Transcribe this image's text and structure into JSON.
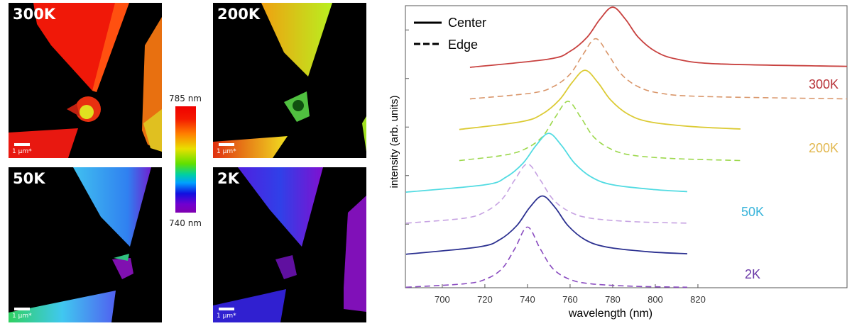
{
  "panels": [
    {
      "label": "300K",
      "scale": "1 µm*"
    },
    {
      "label": "200K",
      "scale": "1 µm*"
    },
    {
      "label": "50K",
      "scale": "1 µm*"
    },
    {
      "label": "2K",
      "scale": "1 µm*"
    }
  ],
  "colorbar": {
    "max_label": "785 nm",
    "min_label": "740 nm",
    "range_nm": [
      740,
      785
    ],
    "colormap": "rainbow (violet to red)"
  },
  "chart_data": {
    "type": "line",
    "title": "",
    "xlabel": "wavelength (nm)",
    "ylabel": "intensity (arb. units)",
    "xlim": [
      682.7,
      890
    ],
    "ylim": [
      -0.31,
      5.5
    ],
    "xticks": [
      700,
      720,
      740,
      760,
      780,
      800,
      820
    ],
    "yticks": [
      1,
      2,
      3,
      4,
      5
    ],
    "ytick_labels_shown": false,
    "grid": false,
    "legend": {
      "placement": "top-left",
      "entries": [
        {
          "label": "Center",
          "style": "solid"
        },
        {
          "label": "Edge",
          "style": "dashed"
        }
      ]
    },
    "annotations": [
      {
        "text": "300K",
        "color": "#b83238"
      },
      {
        "text": "200K",
        "color": "#e2b850"
      },
      {
        "text": "50K",
        "color": "#38b4da"
      },
      {
        "text": "2K",
        "color": "#6a38a8"
      }
    ],
    "series": [
      {
        "temp": "300K",
        "style": "solid",
        "color": "#c8413f",
        "x": [
          713,
          750,
          760,
          768,
          774,
          780,
          786,
          792,
          800,
          810,
          830,
          890
        ],
        "y": [
          4.23,
          4.4,
          4.56,
          4.85,
          5.22,
          5.47,
          5.22,
          4.85,
          4.56,
          4.4,
          4.3,
          4.25
        ]
      },
      {
        "temp": "300K",
        "style": "dashed",
        "color": "#d9966a",
        "x": [
          713,
          742,
          752,
          760,
          766,
          772,
          778,
          784,
          792,
          802,
          822,
          890
        ],
        "y": [
          3.58,
          3.7,
          3.83,
          4.09,
          4.49,
          4.82,
          4.49,
          4.09,
          3.83,
          3.7,
          3.63,
          3.58
        ]
      },
      {
        "temp": "200K",
        "style": "solid",
        "color": "#dccb36",
        "x": [
          708,
          737,
          747,
          755,
          761,
          767,
          773,
          779,
          787,
          797,
          817,
          840
        ],
        "y": [
          2.95,
          3.11,
          3.27,
          3.56,
          3.92,
          4.17,
          3.92,
          3.56,
          3.27,
          3.11,
          3.01,
          2.96
        ]
      },
      {
        "temp": "200K",
        "style": "dashed",
        "color": "#9cd84c",
        "x": [
          708,
          729,
          739,
          747,
          753,
          759,
          765,
          771,
          779,
          789,
          809,
          840
        ],
        "y": [
          2.31,
          2.42,
          2.55,
          2.8,
          3.2,
          3.53,
          3.2,
          2.8,
          2.55,
          2.42,
          2.35,
          2.31
        ]
      },
      {
        "temp": "50K",
        "style": "solid",
        "color": "#52dbe2",
        "x": [
          683,
          720,
          730,
          738,
          744,
          750,
          756,
          762,
          770,
          780,
          800,
          815
        ],
        "y": [
          1.66,
          1.81,
          1.97,
          2.26,
          2.62,
          2.87,
          2.62,
          2.26,
          1.97,
          1.81,
          1.71,
          1.67
        ]
      },
      {
        "temp": "50K",
        "style": "dashed",
        "color": "#c6a2e2",
        "x": [
          683,
          710,
          720,
          728,
          734,
          740,
          746,
          752,
          760,
          770,
          790,
          815
        ],
        "y": [
          1.02,
          1.12,
          1.25,
          1.51,
          1.91,
          2.24,
          1.91,
          1.51,
          1.25,
          1.12,
          1.05,
          1.02
        ]
      },
      {
        "temp": "2K",
        "style": "solid",
        "color": "#2b3090",
        "x": [
          683,
          717,
          727,
          735,
          741,
          747,
          753,
          759,
          767,
          777,
          797,
          815
        ],
        "y": [
          0.38,
          0.53,
          0.68,
          0.97,
          1.34,
          1.58,
          1.34,
          0.97,
          0.68,
          0.53,
          0.43,
          0.39
        ]
      },
      {
        "temp": "2K",
        "style": "dashed",
        "color": "#8a4cc0",
        "x": [
          683,
          710,
          720,
          728,
          734,
          740,
          746,
          752,
          760,
          770,
          790,
          815
        ],
        "y": [
          -0.3,
          -0.23,
          -0.14,
          0.08,
          0.49,
          0.94,
          0.49,
          0.08,
          -0.14,
          -0.23,
          -0.28,
          -0.3
        ]
      }
    ]
  }
}
